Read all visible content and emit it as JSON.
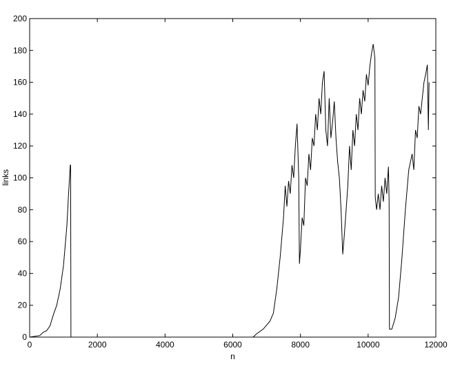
{
  "chart_data": {
    "type": "line",
    "xlabel": "n",
    "ylabel": "links",
    "x": [
      0,
      300,
      400,
      500,
      600,
      700,
      800,
      900,
      1000,
      1100,
      1150,
      1200,
      1210,
      1220,
      2000,
      3000,
      4000,
      5000,
      6000,
      6600,
      6700,
      6900,
      7100,
      7200,
      7300,
      7400,
      7500,
      7550,
      7600,
      7650,
      7700,
      7750,
      7800,
      7850,
      7900,
      7950,
      7970,
      8000,
      8050,
      8100,
      8150,
      8200,
      8250,
      8300,
      8350,
      8400,
      8450,
      8500,
      8550,
      8600,
      8650,
      8700,
      8750,
      8800,
      8850,
      8900,
      8950,
      9000,
      9050,
      9100,
      9150,
      9200,
      9250,
      9300,
      9350,
      9400,
      9450,
      9500,
      9550,
      9600,
      9650,
      9700,
      9750,
      9800,
      9850,
      9900,
      9950,
      10000,
      10050,
      10100,
      10150,
      10200,
      10210,
      10250,
      10300,
      10350,
      10400,
      10450,
      10500,
      10550,
      10600,
      10620,
      10630,
      10700,
      10800,
      10900,
      11000,
      11100,
      11200,
      11300,
      11350,
      11400,
      11450,
      11500,
      11550,
      11600,
      11650,
      11700,
      11750,
      11780,
      11800
    ],
    "series": [
      {
        "name": "links",
        "color": "#000000",
        "values": [
          0,
          1,
          3,
          4,
          7,
          14,
          20,
          30,
          45,
          70,
          90,
          108,
          108,
          0,
          0,
          0,
          0,
          0,
          0,
          0,
          2,
          5,
          10,
          15,
          30,
          50,
          75,
          95,
          82,
          98,
          90,
          108,
          100,
          120,
          134,
          100,
          46,
          55,
          75,
          70,
          100,
          95,
          115,
          105,
          125,
          120,
          140,
          130,
          150,
          140,
          160,
          167,
          130,
          120,
          150,
          125,
          135,
          148,
          125,
          110,
          100,
          80,
          52,
          65,
          80,
          95,
          120,
          105,
          130,
          120,
          140,
          130,
          150,
          140,
          155,
          148,
          165,
          158,
          170,
          178,
          184,
          175,
          88,
          80,
          90,
          80,
          95,
          85,
          100,
          90,
          107,
          85,
          5,
          5,
          12,
          25,
          50,
          80,
          105,
          115,
          105,
          130,
          125,
          145,
          140,
          150,
          160,
          165,
          171,
          130,
          160
        ]
      }
    ],
    "xlim": [
      0,
      12000
    ],
    "xticks": [
      0,
      2000,
      4000,
      6000,
      8000,
      10000,
      12000
    ],
    "ylim": [
      0,
      200
    ],
    "yticks": [
      0,
      20,
      40,
      60,
      80,
      100,
      120,
      140,
      160,
      180,
      200
    ]
  }
}
